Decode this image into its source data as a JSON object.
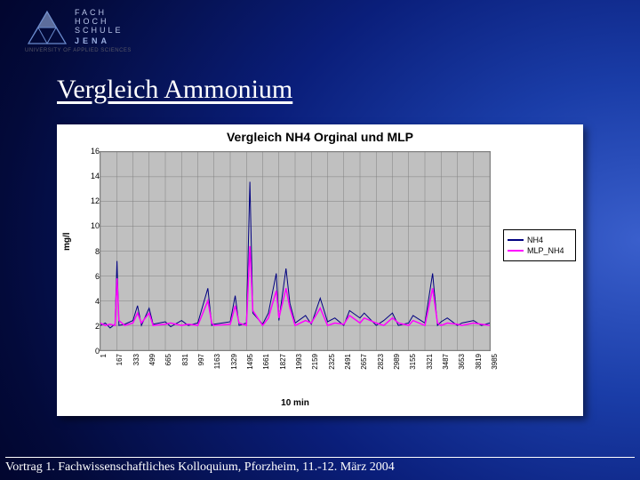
{
  "logo": {
    "line1": "FACH",
    "line2": "HOCH",
    "line3": "SCHULE",
    "line4": "JENA",
    "sub": "UNIVERSITY OF APPLIED SCIENCES",
    "triangle_stroke": "#6688cc",
    "triangle_fill": "#9ab0e0"
  },
  "slide_title": "Vergleich Ammonium",
  "footer": "Vortrag 1. Fachwissenschaftliches Kolloquium, Pforzheim, 11.-12. März 2004",
  "chart": {
    "type": "line",
    "title": "Vergleich NH4 Orginal und MLP",
    "title_fontsize": 14,
    "xlabel": "10 min",
    "ylabel": "mg/l",
    "label_fontsize": 10,
    "background_color": "#ffffff",
    "plot_bg": "#c0c0c0",
    "grid_color": "#808080",
    "ylim": [
      0,
      16
    ],
    "ytick_step": 2,
    "yticks": [
      0,
      2,
      4,
      6,
      8,
      10,
      12,
      14,
      16
    ],
    "xticks": [
      1,
      167,
      333,
      499,
      665,
      831,
      997,
      1163,
      1329,
      1495,
      1661,
      1827,
      1993,
      2159,
      2325,
      2491,
      2657,
      2823,
      2989,
      3155,
      3321,
      3487,
      3653,
      3819,
      3985
    ],
    "xlim": [
      1,
      3985
    ],
    "legend": {
      "position": "right"
    },
    "series": [
      {
        "name": "NH4",
        "color": "#000080",
        "line_width": 1,
        "data": [
          [
            1,
            2.0
          ],
          [
            50,
            2.2
          ],
          [
            100,
            1.8
          ],
          [
            150,
            2.1
          ],
          [
            170,
            7.2
          ],
          [
            190,
            2.0
          ],
          [
            250,
            2.1
          ],
          [
            333,
            2.4
          ],
          [
            380,
            3.6
          ],
          [
            420,
            2.0
          ],
          [
            499,
            3.4
          ],
          [
            540,
            2.1
          ],
          [
            665,
            2.3
          ],
          [
            720,
            1.9
          ],
          [
            831,
            2.4
          ],
          [
            900,
            2.0
          ],
          [
            997,
            2.2
          ],
          [
            1100,
            5.0
          ],
          [
            1140,
            2.0
          ],
          [
            1163,
            2.1
          ],
          [
            1329,
            2.3
          ],
          [
            1380,
            4.4
          ],
          [
            1420,
            2.0
          ],
          [
            1495,
            2.2
          ],
          [
            1530,
            13.6
          ],
          [
            1560,
            3.0
          ],
          [
            1661,
            2.1
          ],
          [
            1720,
            3.0
          ],
          [
            1800,
            6.2
          ],
          [
            1827,
            2.4
          ],
          [
            1900,
            6.6
          ],
          [
            1940,
            3.8
          ],
          [
            1993,
            2.2
          ],
          [
            2100,
            2.8
          ],
          [
            2159,
            2.1
          ],
          [
            2250,
            4.2
          ],
          [
            2325,
            2.3
          ],
          [
            2400,
            2.6
          ],
          [
            2491,
            2.0
          ],
          [
            2550,
            3.2
          ],
          [
            2657,
            2.6
          ],
          [
            2700,
            3.0
          ],
          [
            2823,
            2.0
          ],
          [
            2900,
            2.4
          ],
          [
            2989,
            3.0
          ],
          [
            3050,
            2.0
          ],
          [
            3155,
            2.2
          ],
          [
            3200,
            2.8
          ],
          [
            3321,
            2.2
          ],
          [
            3400,
            6.2
          ],
          [
            3450,
            2.0
          ],
          [
            3487,
            2.3
          ],
          [
            3550,
            2.6
          ],
          [
            3653,
            2.0
          ],
          [
            3700,
            2.2
          ],
          [
            3819,
            2.4
          ],
          [
            3900,
            2.0
          ],
          [
            3985,
            2.2
          ]
        ]
      },
      {
        "name": "MLP_NH4",
        "color": "#ff00ff",
        "line_width": 1.5,
        "data": [
          [
            1,
            2.2
          ],
          [
            50,
            2.0
          ],
          [
            100,
            2.1
          ],
          [
            150,
            2.0
          ],
          [
            170,
            5.8
          ],
          [
            190,
            2.4
          ],
          [
            250,
            2.0
          ],
          [
            333,
            2.2
          ],
          [
            380,
            3.0
          ],
          [
            420,
            2.2
          ],
          [
            499,
            3.0
          ],
          [
            540,
            2.0
          ],
          [
            665,
            2.1
          ],
          [
            720,
            2.2
          ],
          [
            831,
            2.0
          ],
          [
            900,
            2.1
          ],
          [
            997,
            2.0
          ],
          [
            1100,
            4.0
          ],
          [
            1140,
            2.2
          ],
          [
            1163,
            2.0
          ],
          [
            1329,
            2.1
          ],
          [
            1380,
            3.6
          ],
          [
            1420,
            2.2
          ],
          [
            1495,
            2.0
          ],
          [
            1530,
            8.4
          ],
          [
            1560,
            3.2
          ],
          [
            1661,
            2.0
          ],
          [
            1720,
            2.6
          ],
          [
            1800,
            4.8
          ],
          [
            1827,
            2.6
          ],
          [
            1900,
            5.0
          ],
          [
            1940,
            3.4
          ],
          [
            1993,
            2.0
          ],
          [
            2100,
            2.4
          ],
          [
            2159,
            2.2
          ],
          [
            2250,
            3.4
          ],
          [
            2325,
            2.0
          ],
          [
            2400,
            2.2
          ],
          [
            2491,
            2.1
          ],
          [
            2550,
            2.8
          ],
          [
            2657,
            2.2
          ],
          [
            2700,
            2.6
          ],
          [
            2823,
            2.2
          ],
          [
            2900,
            2.0
          ],
          [
            2989,
            2.6
          ],
          [
            3050,
            2.2
          ],
          [
            3155,
            2.0
          ],
          [
            3200,
            2.4
          ],
          [
            3321,
            2.0
          ],
          [
            3400,
            5.0
          ],
          [
            3450,
            2.2
          ],
          [
            3487,
            2.0
          ],
          [
            3550,
            2.2
          ],
          [
            3653,
            2.1
          ],
          [
            3700,
            2.0
          ],
          [
            3819,
            2.2
          ],
          [
            3900,
            2.1
          ],
          [
            3985,
            2.0
          ]
        ]
      }
    ]
  }
}
